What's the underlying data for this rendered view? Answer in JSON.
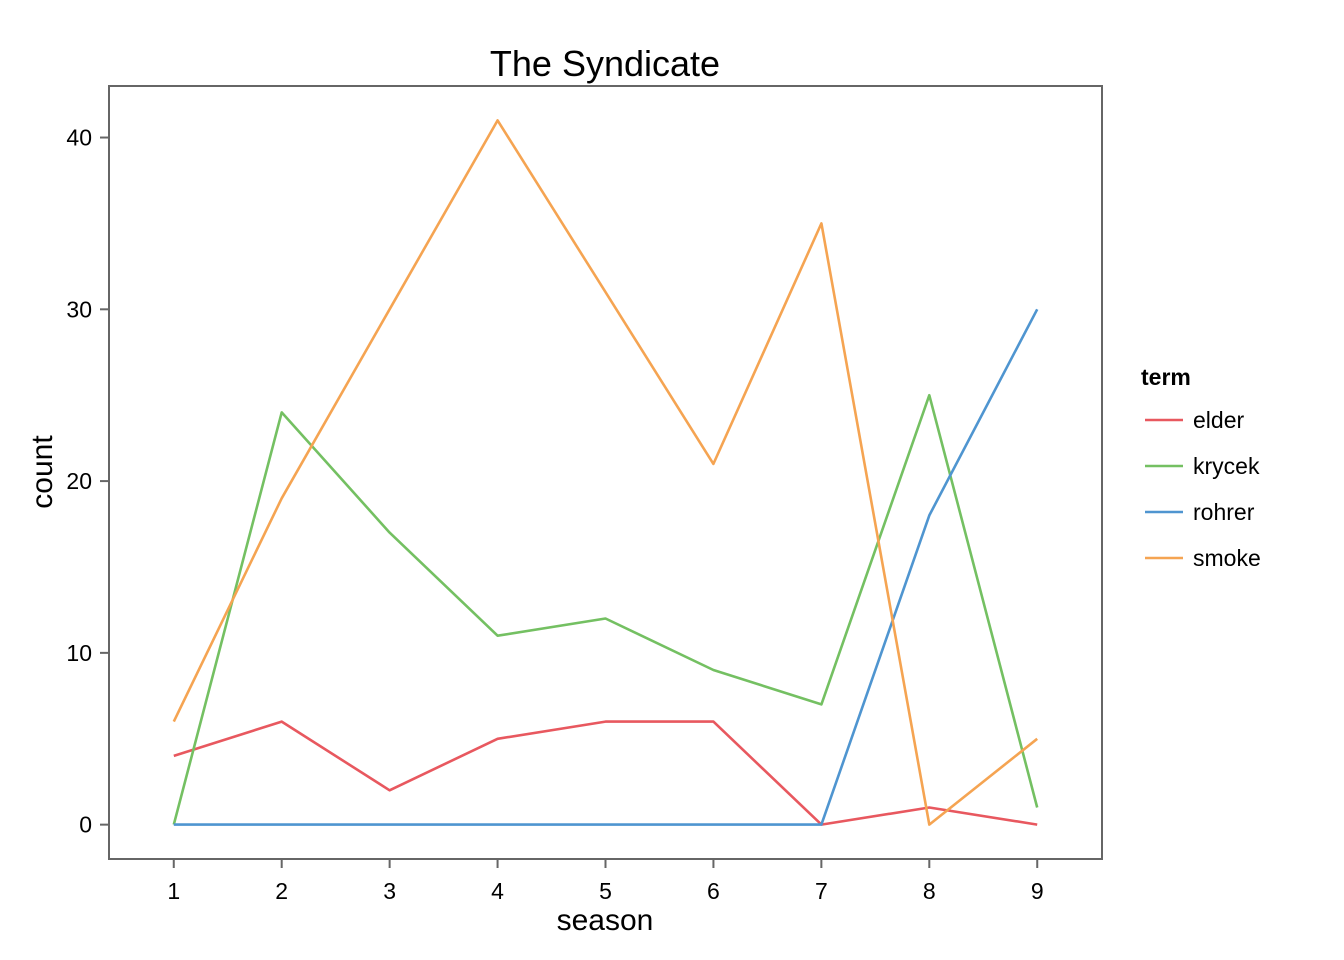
{
  "chart_data": {
    "type": "line",
    "title": "The Syndicate",
    "xlabel": "season",
    "ylabel": "count",
    "x": [
      1,
      2,
      3,
      4,
      5,
      6,
      7,
      8,
      9
    ],
    "x_ticks": [
      "1",
      "2",
      "3",
      "4",
      "5",
      "6",
      "7",
      "8",
      "9"
    ],
    "xlim": [
      0.4,
      9.6
    ],
    "y_ticks": [
      0,
      10,
      20,
      30,
      40
    ],
    "ylim": [
      -2,
      43
    ],
    "grid": false,
    "legend": {
      "title": "term",
      "placement": "right"
    },
    "series": [
      {
        "name": "elder",
        "color": "#E8585F",
        "values": [
          4,
          6,
          2,
          5,
          6,
          6,
          0,
          1,
          0
        ]
      },
      {
        "name": "krycek",
        "color": "#74C062",
        "values": [
          0,
          24,
          17,
          11,
          12,
          9,
          7,
          25,
          1
        ]
      },
      {
        "name": "rohrer",
        "color": "#4F95D0",
        "values": [
          0,
          0,
          0,
          0,
          0,
          0,
          0,
          18,
          30
        ]
      },
      {
        "name": "smoke",
        "color": "#F5A452",
        "values": [
          6,
          19,
          30,
          41,
          31,
          21,
          35,
          0,
          5
        ]
      }
    ]
  }
}
